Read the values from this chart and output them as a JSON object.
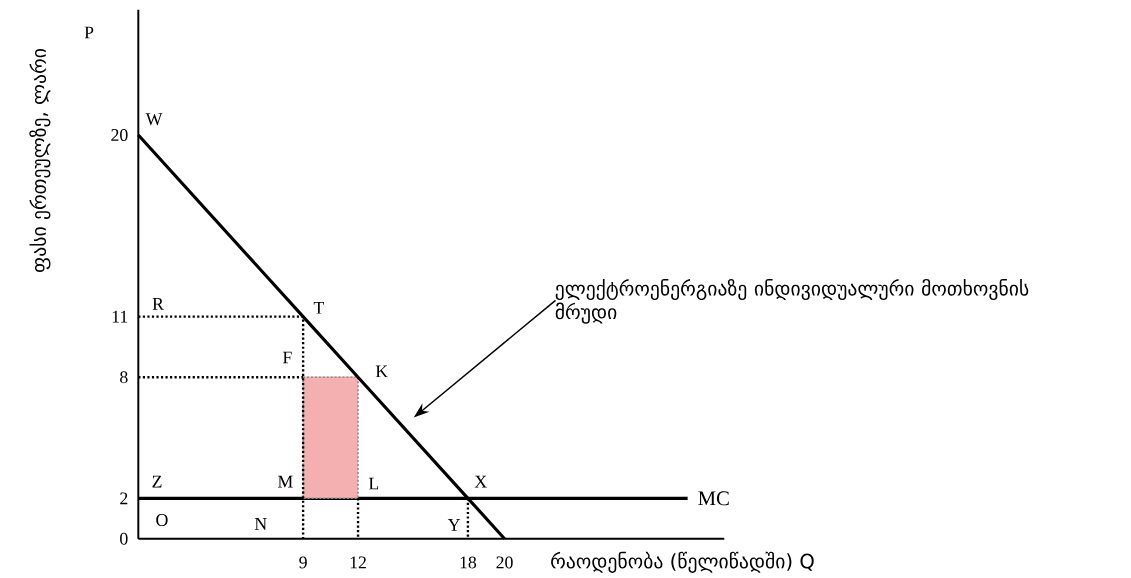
{
  "chart_data": {
    "type": "line",
    "xlabel": "რაოდენობა (წელიწადში) Q",
    "ylabel": "ფასი ერთეულზე, ლარი",
    "xlim": [
      0,
      32
    ],
    "ylim": [
      0,
      26.2
    ],
    "xticks": [
      9,
      12,
      18,
      20
    ],
    "yticks": [
      0,
      2,
      8,
      11,
      20
    ],
    "series": [
      {
        "name": "MC",
        "color": "#000000",
        "x": [
          0,
          30
        ],
        "values": [
          2,
          2
        ]
      },
      {
        "color": "#f4b0b0",
        "x": [
          9,
          12
        ],
        "values": [
          8,
          8
        ],
        "lower": [
          2,
          2
        ],
        "upper": [
          8,
          8
        ]
      },
      {
        "color": "#000000",
        "line_style": "dotted",
        "x": [
          0,
          9,
          9
        ],
        "values": [
          11,
          11,
          0
        ]
      },
      {
        "color": "#000000",
        "line_style": "dotted",
        "x": [
          0,
          9
        ],
        "values": [
          8,
          8
        ]
      },
      {
        "color": "#000000",
        "line_style": "dotted",
        "x": [
          12,
          12
        ],
        "values": [
          2,
          0
        ]
      },
      {
        "color": "#000000",
        "line_style": "dotted",
        "x": [
          18,
          18
        ],
        "values": [
          2,
          0
        ]
      },
      {
        "color": "#000000",
        "x": [
          0,
          9,
          12,
          18,
          20
        ],
        "values": [
          20,
          11,
          8,
          2,
          0
        ]
      }
    ],
    "annotations": [
      "ელექტროენერგიაზე ინდივიდუალური მოთხოვნის მრუდი",
      {
        "text": "W",
        "x": 0,
        "y": 20
      },
      {
        "text": "R",
        "x": 0,
        "y": 11
      },
      {
        "text": "T",
        "x": 9,
        "y": 11
      },
      {
        "text": "F",
        "x": 9,
        "y": 8
      },
      {
        "text": "K",
        "x": 12,
        "y": 8
      },
      {
        "text": "Z",
        "x": 0,
        "y": 2
      },
      {
        "text": "M",
        "x": 9,
        "y": 2
      },
      {
        "text": "L",
        "x": 12,
        "y": 2
      },
      {
        "text": "X",
        "x": 18,
        "y": 2
      },
      "O",
      {
        "text": "N",
        "x": 9,
        "y": 0
      },
      {
        "text": "Y",
        "x": 18,
        "y": 0
      },
      "P"
    ]
  }
}
